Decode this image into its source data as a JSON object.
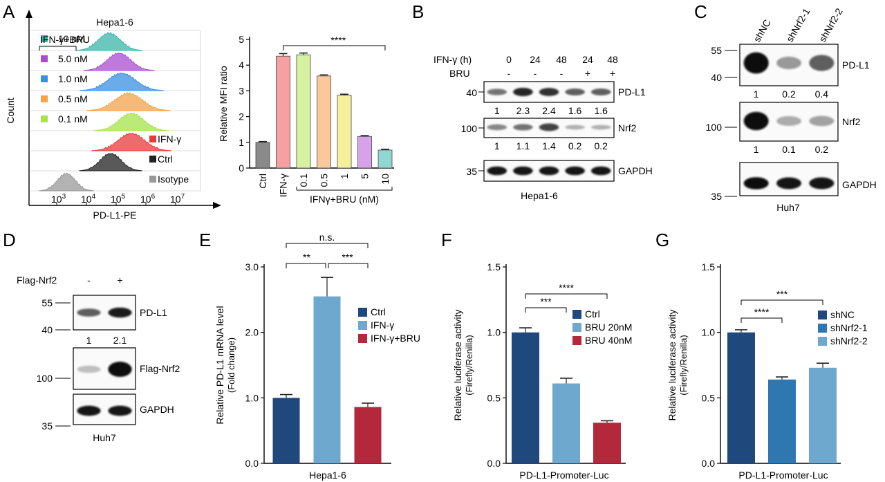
{
  "panel_labels": [
    "A",
    "B",
    "C",
    "D",
    "E",
    "F",
    "G"
  ],
  "panel_a": {
    "cell_line": "Hepa1-6",
    "treatment_header": "IFN-γ+BRU",
    "histogram_rows": [
      {
        "label": "10 nM",
        "color": "#3bb5aa"
      },
      {
        "label": "5.0 nM",
        "color": "#a94bd1"
      },
      {
        "label": "1.0 nM",
        "color": "#3a8fe0"
      },
      {
        "label": "0.5 nM",
        "color": "#f4a348"
      },
      {
        "label": "0.1 nM",
        "color": "#a6e34c"
      },
      {
        "label": "IFN-γ",
        "color": "#e83a3a"
      },
      {
        "label": "Ctrl",
        "color": "#222222"
      },
      {
        "label": "Isotype",
        "color": "#999999"
      }
    ],
    "y_axis_label": "Count",
    "x_axis_label": "PD-L1-PE",
    "x_ticks": [
      {
        "base": "10",
        "exp": "3"
      },
      {
        "base": "10",
        "exp": "4"
      },
      {
        "base": "10",
        "exp": "5"
      },
      {
        "base": "10",
        "exp": "6"
      },
      {
        "base": "10",
        "exp": "7"
      }
    ]
  },
  "panel_b": {
    "row_ifn_label": "IFN-γ (h)",
    "row_bru_label": "BRU",
    "ifn_values": [
      "0",
      "24",
      "48",
      "24",
      "48"
    ],
    "bru_values": [
      "-",
      "-",
      "-",
      "+",
      "+"
    ],
    "blots": [
      {
        "name": "PD-L1",
        "marker": "40",
        "quant": [
          "1",
          "2.3",
          "2.4",
          "1.6",
          "1.6"
        ]
      },
      {
        "name": "Nrf2",
        "marker": "100",
        "quant": [
          "1",
          "1.1",
          "1.4",
          "0.2",
          "0.2"
        ]
      },
      {
        "name": "GAPDH",
        "marker": "35",
        "quant": []
      }
    ],
    "cell_line": "Hepa1-6"
  },
  "panel_c": {
    "lanes": [
      "shNC",
      "shNrf2-1",
      "shNrf2-2"
    ],
    "blots": [
      {
        "name": "PD-L1",
        "markers": [
          "55",
          "40"
        ],
        "quant": [
          "1",
          "0.2",
          "0.4"
        ]
      },
      {
        "name": "Nrf2",
        "markers": [
          "100"
        ],
        "quant": [
          "1",
          "0.1",
          "0.2"
        ]
      },
      {
        "name": "GAPDH",
        "markers": [
          "35"
        ],
        "quant": []
      }
    ],
    "cell_line": "Huh7"
  },
  "panel_d": {
    "row_label": "Flag-Nrf2",
    "lane_values": [
      "-",
      "+"
    ],
    "blots": [
      {
        "name": "PD-L1",
        "markers": [
          "55",
          "40"
        ],
        "quant": [
          "1",
          "2.1"
        ]
      },
      {
        "name": "Flag-Nrf2",
        "markers": [
          "100"
        ],
        "quant": []
      },
      {
        "name": "GAPDH",
        "markers": [
          "35"
        ],
        "quant": []
      }
    ],
    "cell_line": "Huh7"
  },
  "chart_data": [
    {
      "panel": "A",
      "type": "bar",
      "categories": [
        "Ctrl",
        "IFN-γ",
        "0.1",
        "0.5",
        "1",
        "5",
        "10"
      ],
      "values": [
        1.0,
        4.35,
        4.4,
        3.58,
        2.83,
        1.23,
        0.7
      ],
      "errors": [
        0.03,
        0.1,
        0.07,
        0.04,
        0.04,
        0.03,
        0.03
      ],
      "colors": [
        "#8a8a8a",
        "#f5a1a1",
        "#d6f2a0",
        "#f8c99a",
        "#f4f09a",
        "#d8a2ea",
        "#8fd8d2"
      ],
      "ylabel": "Relative MFI ratio",
      "xgroup_label": "IFNγ+BRU (nM)",
      "ylim": [
        0,
        5
      ],
      "yticks": [
        "0",
        "1",
        "2",
        "3",
        "4",
        "5"
      ],
      "significance": [
        {
          "from": "IFN-γ",
          "to": "10",
          "label": "****"
        }
      ]
    },
    {
      "panel": "E",
      "type": "bar",
      "categories": [
        "Ctrl",
        "IFN-γ",
        "IFN-γ+BRU"
      ],
      "values": [
        1.0,
        2.55,
        0.86
      ],
      "errors": [
        0.05,
        0.29,
        0.06
      ],
      "colors": [
        "#1f497d",
        "#6fa8cf",
        "#b3283a"
      ],
      "ylabel": "Relative PD-L1 mRNA level",
      "ylabel2": "(Fold change)",
      "xlabel": "Hepa1-6",
      "ylim": [
        0,
        3
      ],
      "yticks": [
        "0.0",
        "1.0",
        "2.0",
        "3.0"
      ],
      "legend": [
        "Ctrl",
        "IFN-γ",
        "IFN-γ+BRU"
      ],
      "significance": [
        {
          "from": "Ctrl",
          "to": "IFN-γ",
          "label": "**"
        },
        {
          "from": "IFN-γ",
          "to": "IFN-γ+BRU",
          "label": "***"
        },
        {
          "from": "Ctrl",
          "to": "IFN-γ+BRU",
          "label": "n.s."
        }
      ]
    },
    {
      "panel": "F",
      "type": "bar",
      "categories": [
        "Ctrl",
        "BRU 20nM",
        "BRU 40nM"
      ],
      "values": [
        1.0,
        0.61,
        0.31
      ],
      "errors": [
        0.035,
        0.04,
        0.015
      ],
      "colors": [
        "#1f497d",
        "#6fa8cf",
        "#b3283a"
      ],
      "ylabel": "Relative luciferase activity",
      "ylabel2": "(Firefly/Renilla)",
      "xlabel": "PD-L1-Promoter-Luc",
      "ylim": [
        0,
        1.5
      ],
      "yticks": [
        "0.0",
        "0.5",
        "1.0",
        "1.5"
      ],
      "legend": [
        "Ctrl",
        "BRU 20nM",
        "BRU 40nM"
      ],
      "significance": [
        {
          "from": "Ctrl",
          "to": "BRU 20nM",
          "label": "***"
        },
        {
          "from": "Ctrl",
          "to": "BRU 40nM",
          "label": "****"
        }
      ]
    },
    {
      "panel": "G",
      "type": "bar",
      "categories": [
        "shNC",
        "shNrf2-1",
        "shNrf2-2"
      ],
      "values": [
        1.0,
        0.64,
        0.73
      ],
      "errors": [
        0.02,
        0.02,
        0.035
      ],
      "colors": [
        "#1f497d",
        "#2f77b0",
        "#6fa8cf"
      ],
      "ylabel": "Relative luciferase activity",
      "ylabel2": "(Firefly/Renilla)",
      "xlabel": "PD-L1-Promoter-Luc",
      "ylim": [
        0,
        1.5
      ],
      "yticks": [
        "0.0",
        "0.5",
        "1.0",
        "1.5"
      ],
      "legend": [
        "shNC",
        "shNrf2-1",
        "shNrf2-2"
      ],
      "significance": [
        {
          "from": "shNC",
          "to": "shNrf2-1",
          "label": "****"
        },
        {
          "from": "shNC",
          "to": "shNrf2-2",
          "label": "***"
        }
      ]
    }
  ]
}
